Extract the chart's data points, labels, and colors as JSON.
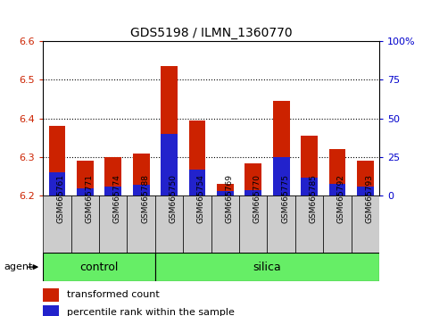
{
  "title": "GDS5198 / ILMN_1360770",
  "samples": [
    "GSM665761",
    "GSM665771",
    "GSM665774",
    "GSM665788",
    "GSM665750",
    "GSM665754",
    "GSM665769",
    "GSM665770",
    "GSM665775",
    "GSM665785",
    "GSM665792",
    "GSM665793"
  ],
  "transformed_count": [
    6.38,
    6.29,
    6.3,
    6.31,
    6.535,
    6.395,
    6.23,
    6.285,
    6.445,
    6.355,
    6.32,
    6.29
  ],
  "percentile_rank": [
    15,
    5,
    6,
    7,
    40,
    17,
    3,
    4,
    25,
    12,
    8,
    6
  ],
  "ylim_left": [
    6.2,
    6.6
  ],
  "ylim_right": [
    0,
    100
  ],
  "yticks_left": [
    6.2,
    6.3,
    6.4,
    6.5,
    6.6
  ],
  "yticks_right": [
    0,
    25,
    50,
    75,
    100
  ],
  "bar_color_red": "#cc2200",
  "bar_color_blue": "#2222cc",
  "agent_label": "agent",
  "group_divider": 4,
  "group_color": "#66ee66",
  "legend_red": "transformed count",
  "legend_blue": "percentile rank within the sample",
  "right_axis_color": "#0000cc",
  "left_axis_color": "#cc2200",
  "bar_width": 0.6,
  "base_value": 6.2,
  "xtick_bg_color": "#cccccc",
  "plot_bg": "white",
  "border_color": "black"
}
